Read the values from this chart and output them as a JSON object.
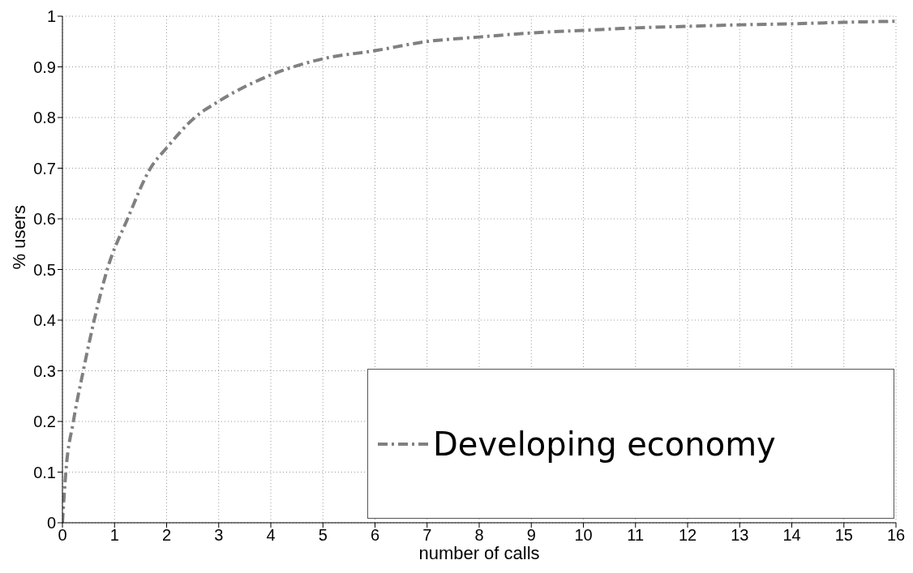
{
  "chart_data": {
    "type": "line",
    "xlabel": "number of calls",
    "ylabel": "% users",
    "series": [
      {
        "name": "Developing economy",
        "color": "#808080",
        "x": [
          0,
          0.065,
          0.21,
          0.4,
          0.61,
          0.86,
          1.25,
          1.69,
          2,
          2.54,
          3,
          4,
          5,
          6,
          7,
          8,
          9,
          10,
          11,
          12,
          13,
          14,
          15,
          16
        ],
        "values": [
          0,
          0.1,
          0.2,
          0.3,
          0.4,
          0.5,
          0.6,
          0.7,
          0.74,
          0.8,
          0.832,
          0.884,
          0.916,
          0.932,
          0.95,
          0.959,
          0.967,
          0.972,
          0.977,
          0.98,
          0.983,
          0.985,
          0.988,
          0.99
        ]
      }
    ],
    "xlim": [
      0,
      16
    ],
    "xticks": [
      0,
      1,
      2,
      3,
      4,
      5,
      6,
      7,
      8,
      9,
      10,
      11,
      12,
      13,
      14,
      15,
      16
    ],
    "ylim": [
      0,
      1
    ],
    "yticks": [
      0,
      0.1,
      0.2,
      0.3,
      0.4,
      0.5,
      0.6,
      0.7,
      0.8,
      0.9,
      1
    ],
    "grid": true,
    "legend": "bottom right",
    "marker": "none",
    "line_style": "dashed"
  }
}
